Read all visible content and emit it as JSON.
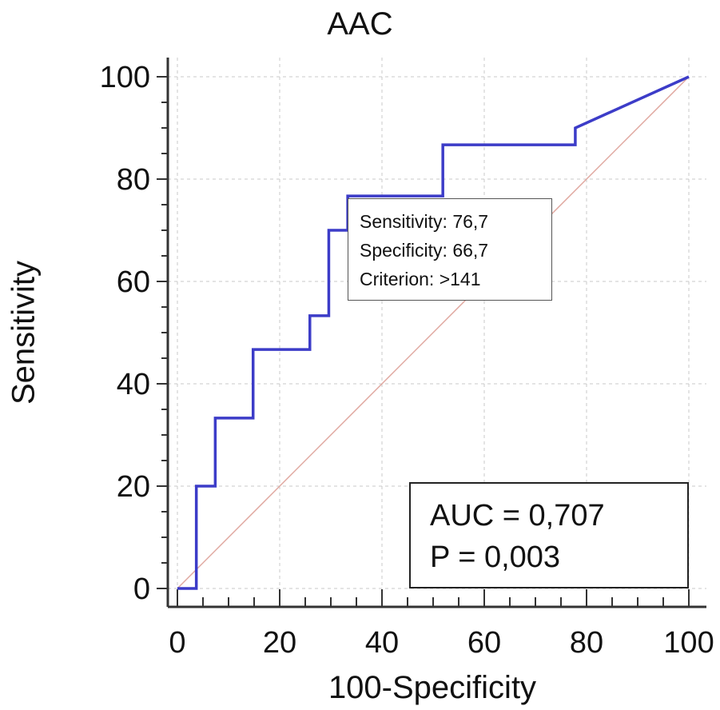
{
  "chart_data": {
    "type": "line",
    "title": "AAC",
    "xlabel": "100-Specificity",
    "ylabel": "Sensitivity",
    "xlim": [
      0,
      100
    ],
    "ylim": [
      0,
      100
    ],
    "x_ticks": [
      "0",
      "20",
      "40",
      "60",
      "80",
      "100"
    ],
    "y_ticks": [
      "0",
      "20",
      "40",
      "60",
      "80",
      "100"
    ],
    "grid": true,
    "series": [
      {
        "color": "#3c3cc8",
        "x": [
          0,
          3.7,
          3.7,
          7.4,
          7.4,
          14.8,
          14.8,
          25.9,
          25.9,
          29.6,
          29.6,
          33.3,
          33.3,
          51.9,
          51.9,
          77.8,
          77.8,
          100
        ],
        "y": [
          0,
          0,
          20,
          20,
          33.3,
          33.3,
          46.7,
          46.7,
          53.3,
          53.3,
          70,
          70,
          76.7,
          76.7,
          86.7,
          86.7,
          90,
          100
        ]
      }
    ],
    "reference_line": {
      "x": [
        0,
        100
      ],
      "y": [
        0,
        100
      ],
      "color": "#e0a8a0"
    },
    "annotation": {
      "lines": [
        "Sensitivity: 76,7",
        "Specificity: 66,7",
        "Criterion: >141"
      ]
    },
    "stats": {
      "auc": "AUC = 0,707",
      "p": "P = 0,003"
    }
  }
}
